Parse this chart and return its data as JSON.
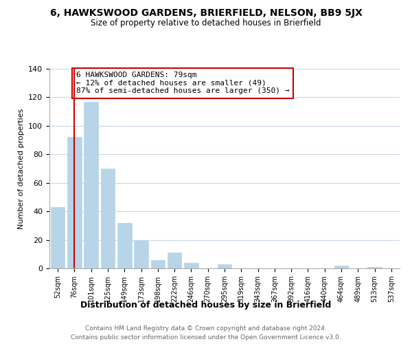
{
  "title": "6, HAWKSWOOD GARDENS, BRIERFIELD, NELSON, BB9 5JX",
  "subtitle": "Size of property relative to detached houses in Brierfield",
  "xlabel": "Distribution of detached houses by size in Brierfield",
  "ylabel": "Number of detached properties",
  "bar_labels": [
    "52sqm",
    "76sqm",
    "101sqm",
    "125sqm",
    "149sqm",
    "173sqm",
    "198sqm",
    "222sqm",
    "246sqm",
    "270sqm",
    "295sqm",
    "319sqm",
    "343sqm",
    "367sqm",
    "392sqm",
    "416sqm",
    "440sqm",
    "464sqm",
    "489sqm",
    "513sqm",
    "537sqm"
  ],
  "bar_values": [
    43,
    92,
    117,
    70,
    32,
    20,
    6,
    11,
    4,
    0,
    3,
    0,
    0,
    0,
    0,
    0,
    0,
    2,
    0,
    1,
    0
  ],
  "bar_color": "#b8d4e8",
  "bar_edge_color": "#b8d4e8",
  "vline_x": 1,
  "vline_color": "#cc0000",
  "annotation_text": "6 HAWKSWOOD GARDENS: 79sqm\n← 12% of detached houses are smaller (49)\n87% of semi-detached houses are larger (350) →",
  "annotation_box_facecolor": "#ffffff",
  "annotation_box_edgecolor": "#cc0000",
  "ylim": [
    0,
    140
  ],
  "yticks": [
    0,
    20,
    40,
    60,
    80,
    100,
    120,
    140
  ],
  "footer1": "Contains HM Land Registry data © Crown copyright and database right 2024.",
  "footer2": "Contains public sector information licensed under the Open Government Licence v3.0.",
  "background_color": "#ffffff",
  "grid_color": "#c8d8e8"
}
